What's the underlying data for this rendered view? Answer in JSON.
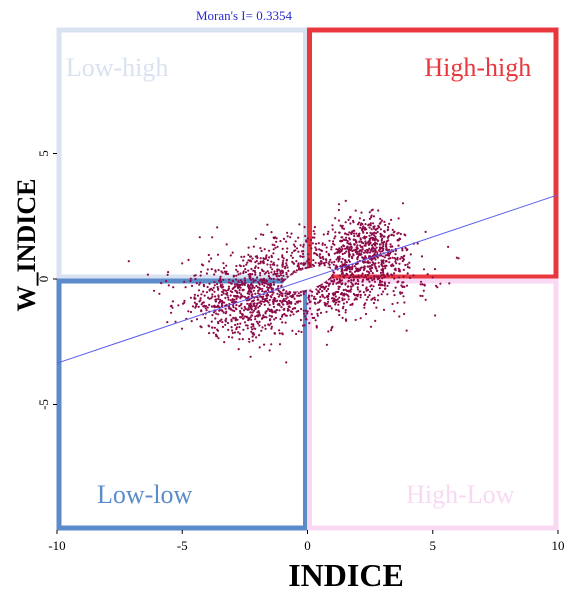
{
  "chart_data": {
    "type": "scatter",
    "title": "Moran's I= 0.3354",
    "xlabel": "INDICE",
    "ylabel": "W_INDICE",
    "xlim": [
      -10,
      10
    ],
    "ylim": [
      -10,
      10
    ],
    "xticks": [
      {
        "value": -10,
        "label": "-10"
      },
      {
        "value": -5,
        "label": "-5"
      },
      {
        "value": 0,
        "label": "0"
      },
      {
        "value": 5,
        "label": "5"
      },
      {
        "value": 10,
        "label": "10"
      }
    ],
    "yticks": [
      {
        "value": -5,
        "label": "-5"
      },
      {
        "value": 0,
        "label": "0"
      },
      {
        "value": 5,
        "label": "5"
      }
    ],
    "quadrants": [
      {
        "key": "low-high",
        "label": "Low-high",
        "color": "#d9e2f0",
        "x": [
          -10,
          0
        ],
        "y": [
          0,
          10
        ],
        "label_at": [
          -7.6,
          8.4
        ]
      },
      {
        "key": "high-high",
        "label": "High-high",
        "color": "#e8383d",
        "x": [
          0,
          10
        ],
        "y": [
          0,
          10
        ],
        "label_at": [
          6.8,
          8.4
        ]
      },
      {
        "key": "low-low",
        "label": "Low-low",
        "color": "#5b8bc9",
        "x": [
          -10,
          0
        ],
        "y": [
          -10,
          0
        ],
        "label_at": [
          -6.5,
          -8.6
        ]
      },
      {
        "key": "high-low",
        "label": "High-Low",
        "color": "#f9d8f3",
        "x": [
          0,
          10
        ],
        "y": [
          -10,
          0
        ],
        "label_at": [
          6.1,
          -8.6
        ]
      }
    ],
    "regression": {
      "slope": 0.3354,
      "intercept": 0,
      "color": "#5a5cf0"
    },
    "point_color": "#8c0a48",
    "points": {
      "approx_count": 2200,
      "center": [
        0.6,
        0.1
      ],
      "cluster_spread": [
        1.8,
        0.8
      ],
      "lower_left_tail": {
        "center": [
          -2.4,
          -0.9
        ],
        "spread": [
          1.4,
          0.7
        ]
      },
      "upper_right_tail": {
        "center": [
          2.4,
          1.3
        ],
        "spread": [
          0.7,
          0.6
        ]
      }
    },
    "grid": false,
    "legend": "none"
  }
}
